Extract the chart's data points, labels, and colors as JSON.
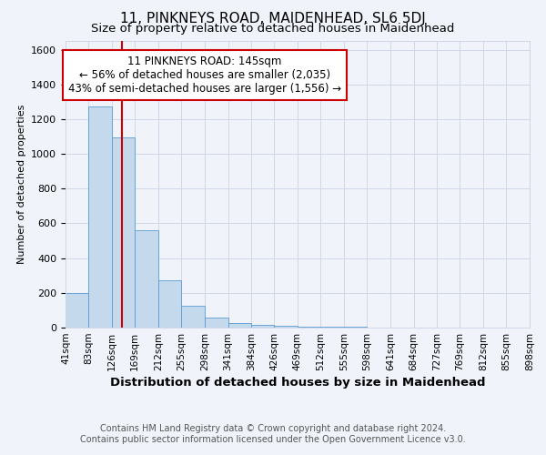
{
  "title": "11, PINKNEYS ROAD, MAIDENHEAD, SL6 5DJ",
  "subtitle": "Size of property relative to detached houses in Maidenhead",
  "xlabel": "Distribution of detached houses by size in Maidenhead",
  "ylabel": "Number of detached properties",
  "footnote1": "Contains HM Land Registry data © Crown copyright and database right 2024.",
  "footnote2": "Contains public sector information licensed under the Open Government Licence v3.0.",
  "annotation_line1": "11 PINKNEYS ROAD: 145sqm",
  "annotation_line2": "← 56% of detached houses are smaller (2,035)",
  "annotation_line3": "43% of semi-detached houses are larger (1,556) →",
  "property_size": 145,
  "bar_edges": [
    41,
    83,
    126,
    169,
    212,
    255,
    298,
    341,
    384,
    426,
    469,
    512,
    555,
    598,
    641,
    684,
    727,
    769,
    812,
    855,
    898
  ],
  "bar_heights": [
    200,
    1275,
    1095,
    560,
    270,
    125,
    60,
    25,
    15,
    8,
    5,
    4,
    3,
    2,
    2,
    1,
    1,
    1,
    1,
    1
  ],
  "bar_color": "#c5d9ed",
  "bar_edgecolor": "#5b9bd5",
  "annotation_box_edgecolor": "#cc0000",
  "annotation_box_facecolor": "#ffffff",
  "vline_color": "#cc0000",
  "bg_color": "#f0f4fa",
  "grid_color": "#d0d8e8",
  "ylim": [
    0,
    1650
  ],
  "title_fontsize": 11,
  "subtitle_fontsize": 9.5,
  "xlabel_fontsize": 9.5,
  "ylabel_fontsize": 8,
  "footnote_fontsize": 7,
  "annotation_fontsize": 8.5,
  "yticks": [
    0,
    200,
    400,
    600,
    800,
    1000,
    1200,
    1400,
    1600
  ],
  "tick_labels": [
    "41sqm",
    "83sqm",
    "126sqm",
    "169sqm",
    "212sqm",
    "255sqm",
    "298sqm",
    "341sqm",
    "384sqm",
    "426sqm",
    "469sqm",
    "512sqm",
    "555sqm",
    "598sqm",
    "641sqm",
    "684sqm",
    "727sqm",
    "769sqm",
    "812sqm",
    "855sqm",
    "898sqm"
  ]
}
